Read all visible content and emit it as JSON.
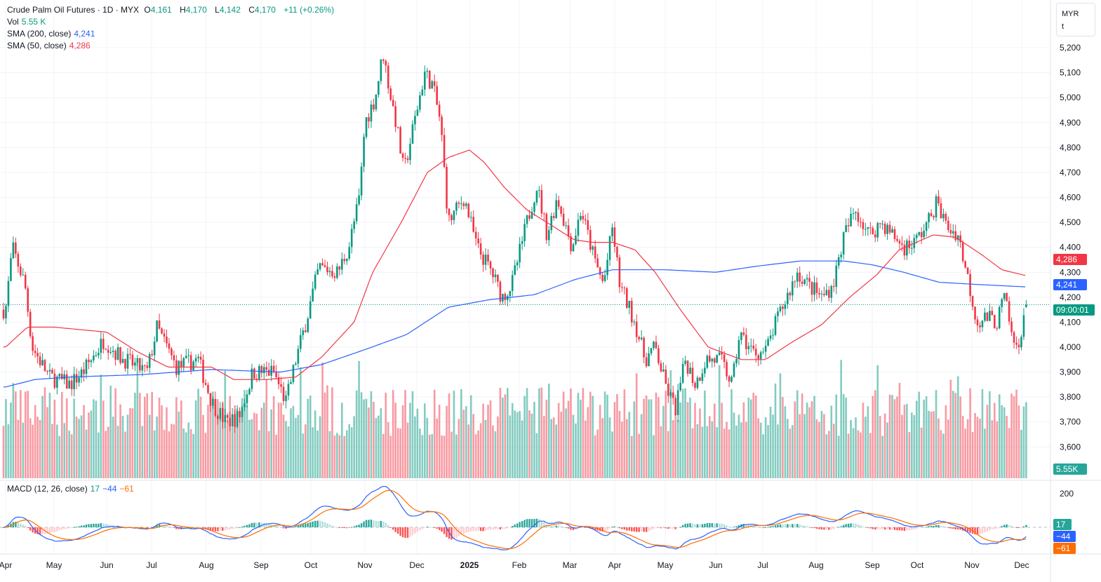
{
  "header": {
    "symbol": "Crude Palm Oil Futures · 1D · MYX",
    "o_label": "O",
    "o": "4,161",
    "h_label": "H",
    "h": "4,170",
    "l_label": "L",
    "l": "4,142",
    "c_label": "C",
    "c": "4,170",
    "change": "+11 (+0.26%)"
  },
  "vol": {
    "label": "Vol",
    "value": "5.55 K"
  },
  "sma200": {
    "label": "SMA (200, close)",
    "value": "4,241"
  },
  "sma50": {
    "label": "SMA (50, close)",
    "value": "4,286"
  },
  "macd": {
    "label": "MACD (12, 26, close)",
    "hist": "17",
    "macd": "−44",
    "signal": "−61"
  },
  "currency": {
    "line1": "MYR",
    "line2": "t"
  },
  "tags": {
    "sma50": "4,286",
    "sma200": "4,241",
    "countdown": "09:00:01",
    "volume": "5.55K",
    "hist": "17",
    "macd": "−44",
    "signal": "−61"
  },
  "colors": {
    "up": "#089981",
    "down": "#f23645",
    "sma200": "#2962ff",
    "sma50": "#f23645",
    "signal": "#ff6d00"
  },
  "chart_data": {
    "type": "candlestick",
    "title": "Crude Palm Oil Futures · 1D · MYX",
    "price_axis": {
      "ticks": [
        5200,
        5100,
        5000,
        4900,
        4800,
        4700,
        4600,
        4500,
        4400,
        4300,
        4200,
        4100,
        4000,
        3900,
        3800,
        3700,
        3600
      ],
      "range": [
        3560,
        5240
      ]
    },
    "macd_axis": {
      "ticks": [
        200
      ]
    },
    "time_axis": [
      "Apr",
      "May",
      "Jun",
      "Jul",
      "Aug",
      "Sep",
      "Oct",
      "Nov",
      "Dec",
      "2025",
      "Feb",
      "Mar",
      "Apr",
      "May",
      "Jun",
      "Jul",
      "Aug",
      "Sep",
      "Oct",
      "Nov",
      "Dec"
    ],
    "price_path_monthly_index": [
      [
        0,
        4150
      ],
      [
        0.14,
        4400
      ],
      [
        0.4,
        4250
      ],
      [
        0.55,
        4000
      ],
      [
        0.9,
        3880
      ],
      [
        1.3,
        3850
      ],
      [
        1.55,
        3900
      ],
      [
        1.95,
        4030
      ],
      [
        2.3,
        3960
      ],
      [
        2.9,
        3900
      ],
      [
        3.1,
        4080
      ],
      [
        3.45,
        3920
      ],
      [
        3.85,
        3950
      ],
      [
        4.1,
        3780
      ],
      [
        4.35,
        3700
      ],
      [
        4.6,
        3720
      ],
      [
        4.85,
        3900
      ],
      [
        5.25,
        3900
      ],
      [
        5.5,
        3780
      ],
      [
        5.7,
        3950
      ],
      [
        5.9,
        4100
      ],
      [
        6.15,
        4320
      ],
      [
        6.5,
        4300
      ],
      [
        6.7,
        4400
      ],
      [
        6.9,
        4600
      ],
      [
        7.0,
        4900
      ],
      [
        7.2,
        5000
      ],
      [
        7.35,
        5180
      ],
      [
        7.5,
        5000
      ],
      [
        7.6,
        4900
      ],
      [
        7.75,
        4700
      ],
      [
        7.95,
        4900
      ],
      [
        8.15,
        5100
      ],
      [
        8.3,
        5050
      ],
      [
        8.45,
        4900
      ],
      [
        8.6,
        4500
      ],
      [
        8.9,
        4600
      ],
      [
        9.15,
        4400
      ],
      [
        9.45,
        4300
      ],
      [
        9.65,
        4200
      ],
      [
        9.85,
        4250
      ],
      [
        10.15,
        4500
      ],
      [
        10.35,
        4650
      ],
      [
        10.55,
        4450
      ],
      [
        10.75,
        4600
      ],
      [
        11.05,
        4400
      ],
      [
        11.25,
        4550
      ],
      [
        11.55,
        4350
      ],
      [
        11.75,
        4250
      ],
      [
        11.95,
        4480
      ],
      [
        12.1,
        4250
      ],
      [
        12.4,
        4100
      ],
      [
        12.6,
        3950
      ],
      [
        12.8,
        4000
      ],
      [
        13.0,
        3850
      ],
      [
        13.2,
        3750
      ],
      [
        13.4,
        3950
      ],
      [
        13.6,
        3850
      ],
      [
        13.8,
        3950
      ],
      [
        14.1,
        3950
      ],
      [
        14.35,
        3850
      ],
      [
        14.5,
        4050
      ],
      [
        14.8,
        3980
      ],
      [
        15.05,
        3980
      ],
      [
        15.25,
        4100
      ],
      [
        15.45,
        4200
      ],
      [
        15.65,
        4300
      ],
      [
        15.85,
        4250
      ],
      [
        16.1,
        4200
      ],
      [
        16.3,
        4250
      ],
      [
        16.5,
        4450
      ],
      [
        16.7,
        4550
      ],
      [
        16.95,
        4450
      ],
      [
        17.2,
        4500
      ],
      [
        17.45,
        4450
      ],
      [
        17.7,
        4400
      ],
      [
        17.95,
        4420
      ],
      [
        18.2,
        4500
      ],
      [
        18.35,
        4580
      ],
      [
        18.55,
        4480
      ],
      [
        18.75,
        4450
      ],
      [
        18.95,
        4250
      ],
      [
        19.1,
        4100
      ],
      [
        19.3,
        4120
      ],
      [
        19.5,
        4100
      ],
      [
        19.65,
        4200
      ],
      [
        19.85,
        4000
      ],
      [
        20.0,
        4050
      ],
      [
        20.1,
        4170
      ]
    ],
    "sma50_path": [
      [
        0,
        4000
      ],
      [
        0.45,
        4080
      ],
      [
        1,
        4080
      ],
      [
        2,
        4060
      ],
      [
        2.7,
        3980
      ],
      [
        3.3,
        3920
      ],
      [
        4.1,
        3920
      ],
      [
        4.5,
        3870
      ],
      [
        5.1,
        3870
      ],
      [
        5.7,
        3880
      ],
      [
        6.2,
        3960
      ],
      [
        6.8,
        4100
      ],
      [
        7.15,
        4300
      ],
      [
        7.7,
        4500
      ],
      [
        8.2,
        4700
      ],
      [
        8.6,
        4760
      ],
      [
        9.0,
        4790
      ],
      [
        9.3,
        4740
      ],
      [
        9.7,
        4640
      ],
      [
        10.15,
        4550
      ],
      [
        10.7,
        4480
      ],
      [
        11.1,
        4430
      ],
      [
        11.5,
        4420
      ],
      [
        11.95,
        4420
      ],
      [
        12.4,
        4390
      ],
      [
        12.8,
        4300
      ],
      [
        13.3,
        4150
      ],
      [
        13.85,
        4000
      ],
      [
        14.55,
        3950
      ],
      [
        15.05,
        3950
      ],
      [
        15.55,
        4020
      ],
      [
        16.1,
        4090
      ],
      [
        16.6,
        4200
      ],
      [
        17.1,
        4290
      ],
      [
        17.6,
        4390
      ],
      [
        18.3,
        4450
      ],
      [
        18.7,
        4440
      ],
      [
        19.2,
        4370
      ],
      [
        19.6,
        4310
      ],
      [
        20.1,
        4286
      ]
    ],
    "sma200_path": [
      [
        0,
        3840
      ],
      [
        0.6,
        3870
      ],
      [
        1.3,
        3880
      ],
      [
        2.8,
        3890
      ],
      [
        4.1,
        3910
      ],
      [
        5.4,
        3900
      ],
      [
        6.2,
        3930
      ],
      [
        7.0,
        3990
      ],
      [
        7.8,
        4050
      ],
      [
        8.6,
        4160
      ],
      [
        9.4,
        4190
      ],
      [
        10.3,
        4210
      ],
      [
        11.1,
        4270
      ],
      [
        11.95,
        4310
      ],
      [
        13.0,
        4310
      ],
      [
        14.0,
        4300
      ],
      [
        14.9,
        4325
      ],
      [
        15.7,
        4345
      ],
      [
        16.5,
        4345
      ],
      [
        17.0,
        4330
      ],
      [
        17.7,
        4300
      ],
      [
        18.4,
        4260
      ],
      [
        19.2,
        4250
      ],
      [
        20.1,
        4241
      ]
    ],
    "last": {
      "open": 4161,
      "high": 4170,
      "low": 4142,
      "close": 4170,
      "volume": "5.55K",
      "sma200": 4241,
      "sma50": 4286,
      "macd": -44,
      "signal": -61,
      "histogram": 17
    }
  }
}
